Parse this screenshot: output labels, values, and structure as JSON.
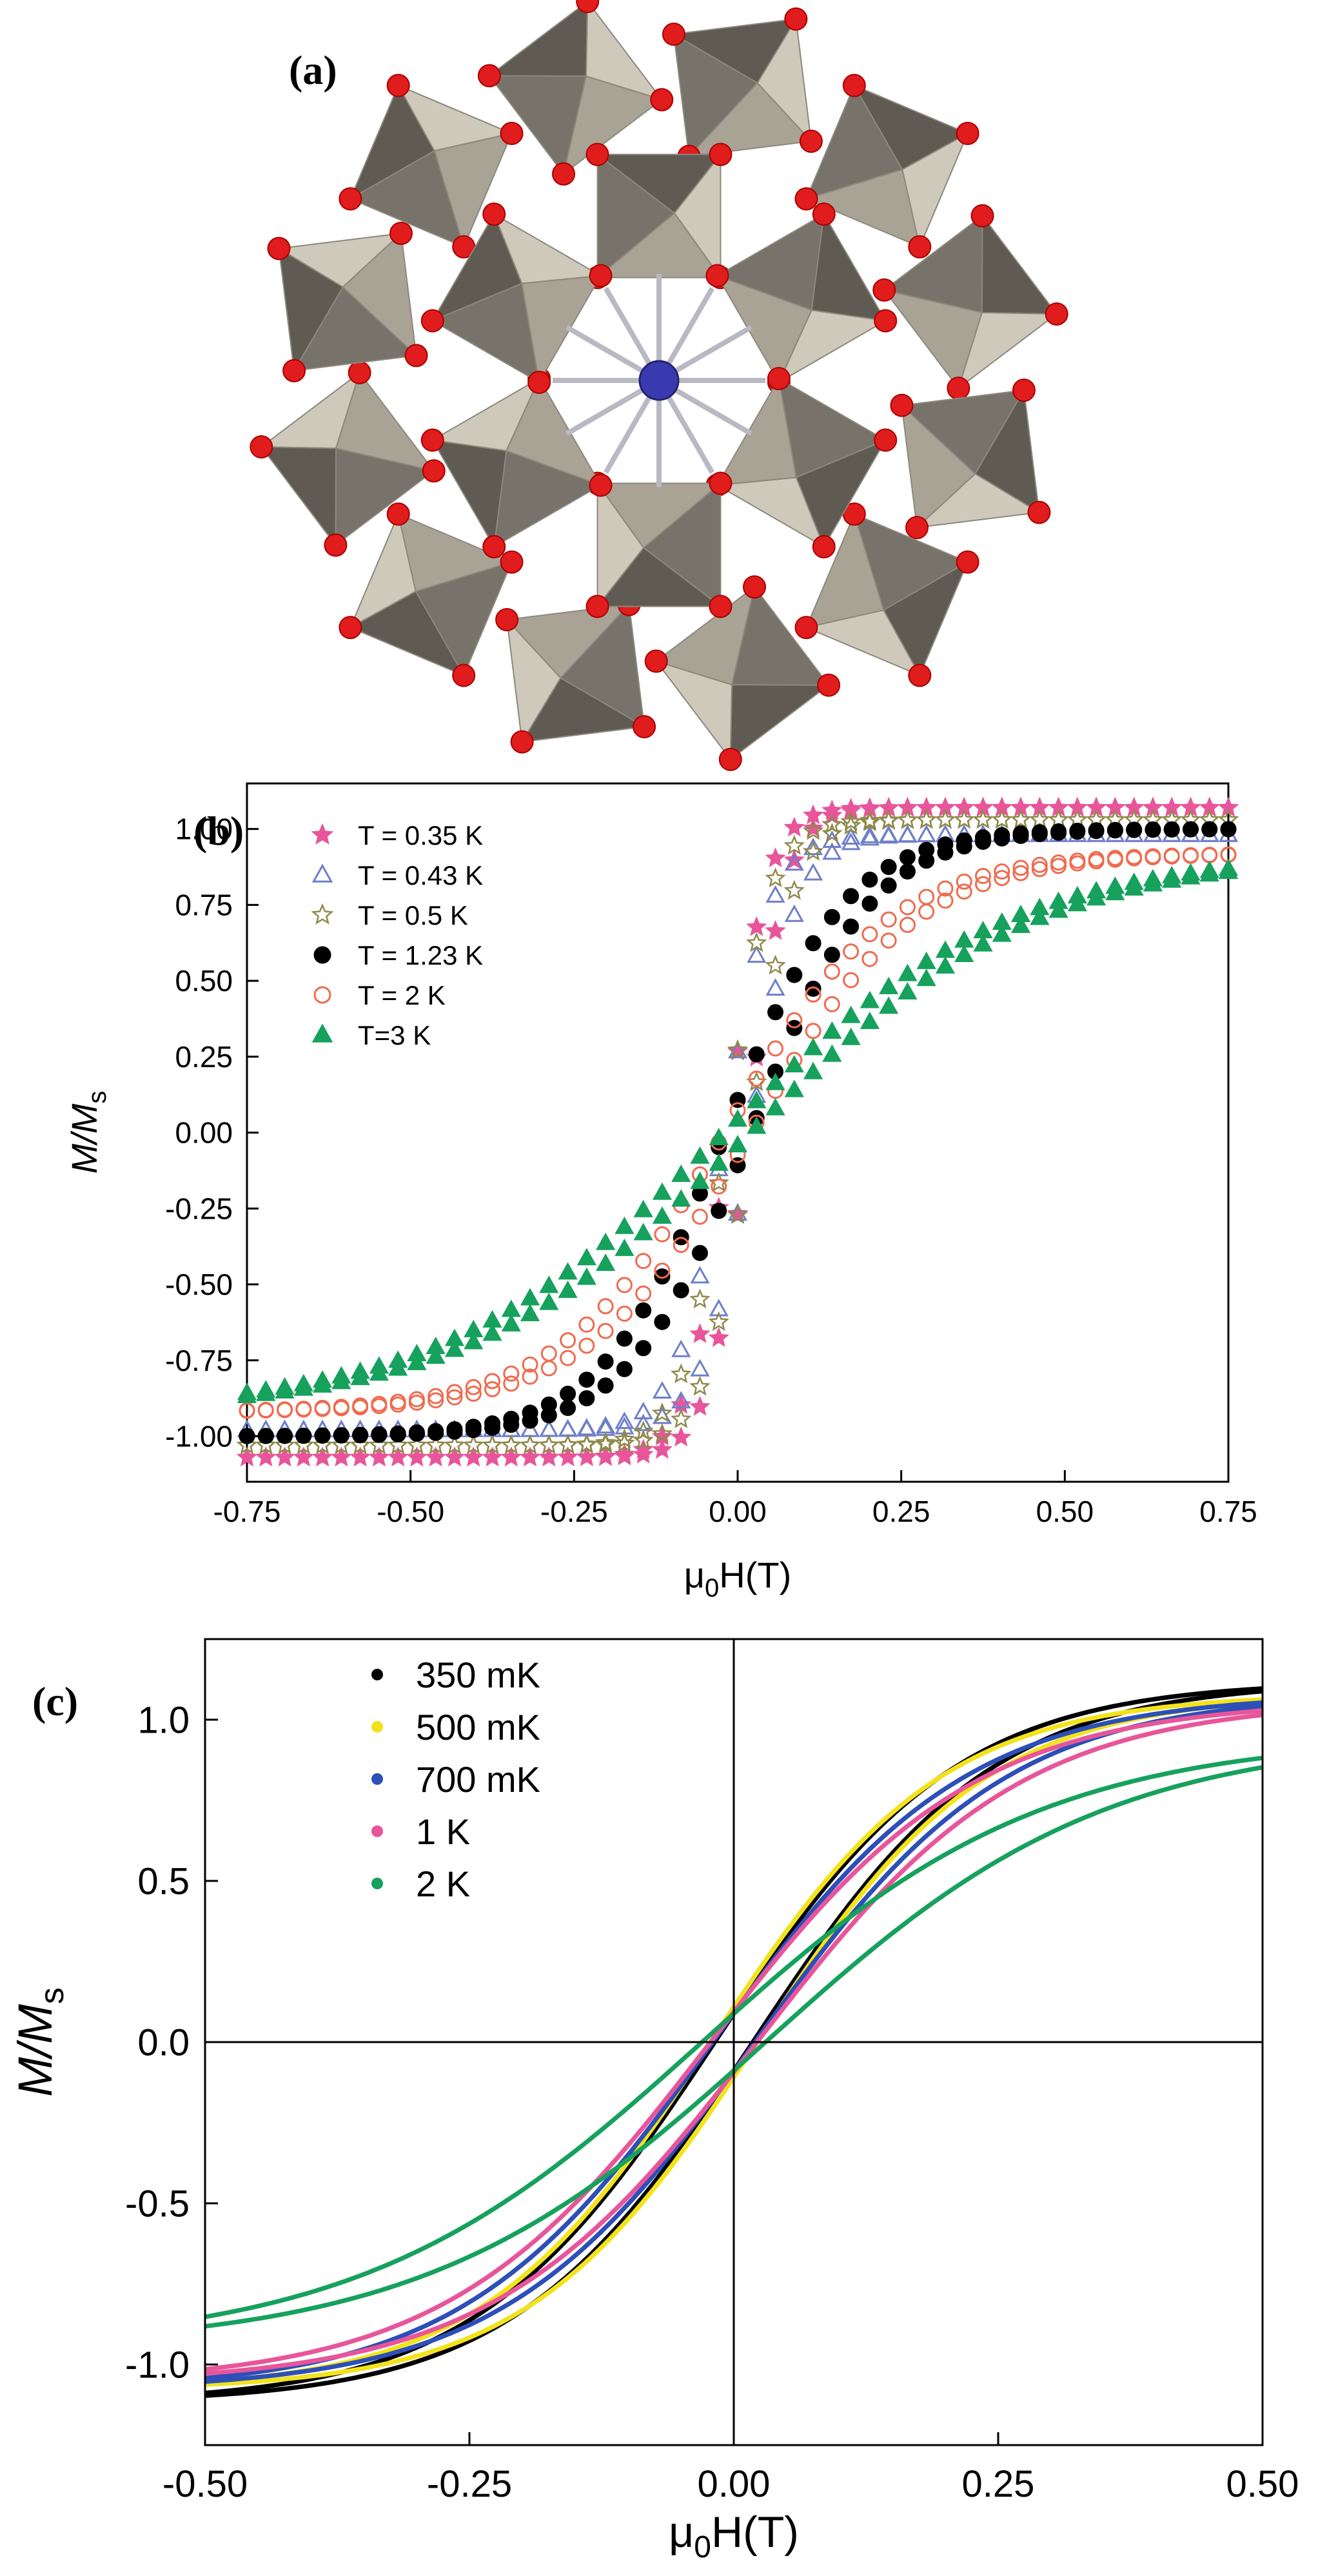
{
  "panels": {
    "a": {
      "label": "(a)"
    },
    "b": {
      "label": "(b)"
    },
    "c": {
      "label": "(c)"
    }
  },
  "chart_data": [
    {
      "panel": "b",
      "type": "scatter",
      "title": "",
      "xlabel_symbol": "μ",
      "xlabel_sub": "0",
      "xlabel_rest": "H(T)",
      "ylabel_main": "M/M",
      "ylabel_sub": "s",
      "xlim": [
        -0.75,
        0.75
      ],
      "ylim": [
        -1.15,
        1.15
      ],
      "xticks": [
        -0.75,
        -0.5,
        -0.25,
        0.0,
        0.25,
        0.5,
        0.75
      ],
      "xtick_labels": [
        "-0.75",
        "-0.50",
        "-0.25",
        "0.00",
        "0.25",
        "0.50",
        "0.75"
      ],
      "yticks": [
        -1.0,
        -0.75,
        -0.5,
        -0.25,
        0.0,
        0.25,
        0.5,
        0.75,
        1.0
      ],
      "ytick_labels": [
        "-1.00",
        "-0.75",
        "-0.50",
        "-0.25",
        "0.00",
        "0.25",
        "0.50",
        "0.75",
        "1.00"
      ],
      "series": [
        {
          "name": "T = 0.35 K",
          "marker": "star-filled",
          "color": "#e8559a",
          "ms": 1.07,
          "k": 17,
          "shift": 0.015
        },
        {
          "name": "T = 0.43 K",
          "marker": "triangle-open",
          "color": "#6f7fc9",
          "ms": 0.98,
          "k": 14,
          "shift": 0.02
        },
        {
          "name": "T = 0.5 K",
          "marker": "star-open",
          "color": "#8f8a4a",
          "ms": 1.03,
          "k": 15,
          "shift": 0.018
        },
        {
          "name": "T = 1.23 K",
          "marker": "circle-filled",
          "color": "#000000",
          "ms": 1.0,
          "k": 5.4,
          "shift": 0.02
        },
        {
          "name": "T = 2 K",
          "marker": "circle-open",
          "color": "#f06a4e",
          "ms": 0.92,
          "k": 4.0,
          "shift": 0.02
        },
        {
          "name": "T=3 K",
          "marker": "triangle-filled",
          "color": "#16a15d",
          "ms": 0.92,
          "k": 2.3,
          "shift": 0.02
        }
      ]
    },
    {
      "panel": "c",
      "type": "line",
      "title": "",
      "xlabel_symbol": "μ",
      "xlabel_sub": "0",
      "xlabel_rest": "H(T)",
      "ylabel_main": "M/M",
      "ylabel_sub": "s",
      "xlim": [
        -0.5,
        0.5
      ],
      "ylim": [
        -1.25,
        1.25
      ],
      "xticks": [
        -0.5,
        -0.25,
        0.0,
        0.25,
        0.5
      ],
      "xtick_labels": [
        "-0.50",
        "-0.25",
        "0.00",
        "0.25",
        "0.50"
      ],
      "yticks": [
        -1.0,
        -0.5,
        0.0,
        0.5,
        1.0
      ],
      "ytick_labels": [
        "-1.0",
        "-0.5",
        "0.0",
        "0.5",
        "1.0"
      ],
      "series": [
        {
          "name": "350 mK",
          "color": "#000000",
          "ms": 1.12,
          "k": 4.4,
          "shift": 0.018
        },
        {
          "name": "500 mK",
          "color": "#f2e31a",
          "ms": 1.08,
          "k": 4.6,
          "shift": 0.022
        },
        {
          "name": "700 mK",
          "color": "#2c4fb8",
          "ms": 1.08,
          "k": 4.2,
          "shift": 0.02
        },
        {
          "name": "1 K",
          "color": "#e8559a",
          "ms": 1.06,
          "k": 4.0,
          "shift": 0.022
        },
        {
          "name": "2 K",
          "color": "#16a15d",
          "ms": 0.95,
          "k": 3.1,
          "shift": 0.03
        }
      ]
    }
  ]
}
